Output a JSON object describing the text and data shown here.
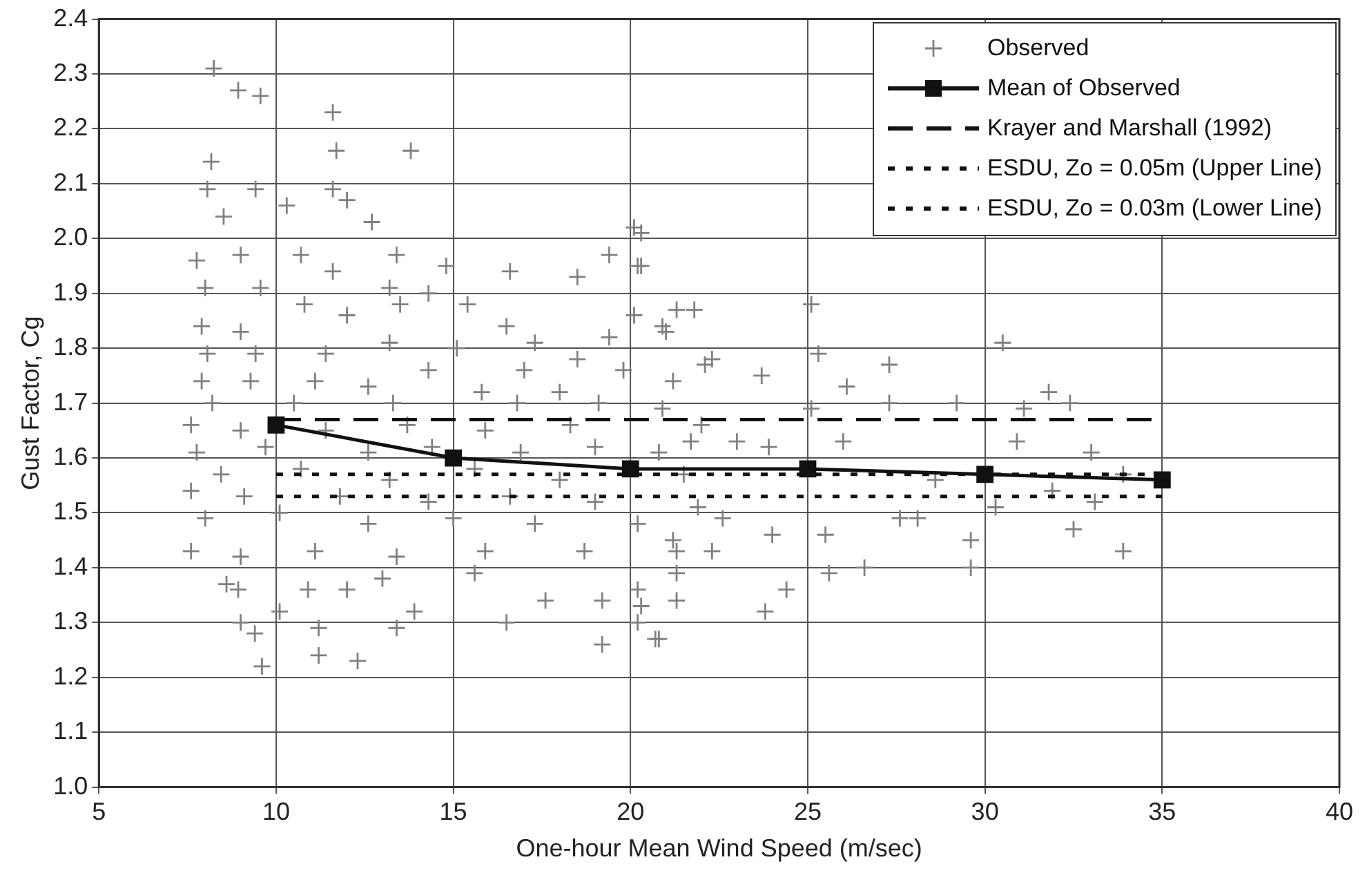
{
  "chart_data": {
    "type": "scatter",
    "xlabel": "One-hour Mean Wind Speed (m/sec)",
    "ylabel": "Gust Factor, Cg",
    "xlim": [
      5,
      40
    ],
    "xticks": [
      5,
      10,
      15,
      20,
      25,
      30,
      35,
      40
    ],
    "ylim": [
      1.0,
      2.4
    ],
    "yticks": [
      {
        "value": 1.0,
        "label": "1.0"
      },
      1.1,
      1.2,
      1.3,
      1.4,
      1.5,
      1.6,
      1.7,
      1.8,
      1.9,
      {
        "value": 2.0,
        "label": "2.0"
      },
      2.1,
      2.2,
      2.3,
      2.4
    ],
    "grid": true,
    "legend": "top right",
    "series": [
      {
        "name": "Observed",
        "type": "scatter",
        "color": "#808080",
        "marker": "cross",
        "x": [
          8.24,
          8.93,
          9.56,
          11.6,
          8.17,
          11.7,
          13.8,
          8.06,
          9.42,
          11.6,
          12.0,
          10.3,
          8.52,
          12.7,
          7.76,
          9.0,
          10.7,
          13.4,
          14.8,
          11.6,
          16.6,
          18.5,
          8.0,
          9.56,
          13.2,
          14.3,
          20.1,
          20.2,
          19.4,
          10.8,
          13.5,
          15.4,
          7.9,
          9.0,
          12.0,
          16.5,
          20.1,
          20.9,
          21.3,
          8.06,
          9.42,
          11.4,
          13.2,
          15.1,
          17.3,
          19.4,
          14.3,
          17.0,
          18.5,
          19.8,
          22.1,
          7.9,
          9.28,
          11.1,
          12.6,
          15.8,
          18.0,
          21.2,
          8.2,
          10.5,
          13.3,
          16.8,
          19.1,
          20.9,
          7.6,
          9.0,
          11.4,
          13.7,
          15.9,
          18.3,
          21.7,
          7.76,
          9.7,
          12.6,
          14.4,
          16.9,
          19.0,
          20.8,
          8.45,
          10.7,
          13.2,
          15.6,
          18.0,
          21.5,
          7.6,
          9.1,
          11.8,
          14.3,
          16.6,
          19.0,
          21.9,
          8.0,
          10.1,
          12.6,
          15.0,
          17.3,
          20.2,
          7.6,
          9.0,
          11.1,
          13.4,
          15.9,
          18.7,
          21.3,
          8.6,
          10.9,
          13.0,
          15.6,
          17.6,
          19.2,
          20.2,
          21.3,
          8.93,
          10.1,
          12.0,
          13.9,
          16.5,
          9.0,
          11.2,
          13.4,
          19.2,
          20.8,
          9.4,
          9.6,
          11.2,
          12.3,
          20.2,
          20.3,
          20.3,
          21.8,
          21.0,
          22.3,
          23.7,
          25.3,
          25.1,
          26.1,
          27.3,
          29.2,
          30.5,
          31.8,
          32.4,
          31.1,
          30.9,
          33.0,
          33.9,
          31.9,
          33.1,
          33.9,
          32.5,
          30.3,
          29.6,
          29.6,
          28.1,
          27.6,
          26.6,
          25.6,
          24.4,
          23.8,
          24.0,
          25.5,
          26.0,
          25.1,
          23.9,
          23.0,
          22.0,
          20.7,
          20.3,
          21.3,
          22.3,
          22.6,
          21.2,
          27.3,
          28.6
        ],
        "values": [
          2.31,
          2.27,
          2.26,
          2.23,
          2.14,
          2.16,
          2.16,
          2.09,
          2.09,
          2.09,
          2.07,
          2.06,
          2.04,
          2.03,
          1.96,
          1.97,
          1.97,
          1.97,
          1.95,
          1.94,
          1.94,
          1.93,
          1.91,
          1.91,
          1.91,
          1.9,
          2.02,
          1.95,
          1.97,
          1.88,
          1.88,
          1.88,
          1.84,
          1.83,
          1.86,
          1.84,
          1.86,
          1.84,
          1.87,
          1.79,
          1.79,
          1.79,
          1.81,
          1.8,
          1.81,
          1.82,
          1.76,
          1.76,
          1.78,
          1.76,
          1.77,
          1.74,
          1.74,
          1.74,
          1.73,
          1.72,
          1.72,
          1.74,
          1.7,
          1.7,
          1.7,
          1.7,
          1.7,
          1.69,
          1.66,
          1.65,
          1.65,
          1.66,
          1.65,
          1.66,
          1.63,
          1.61,
          1.62,
          1.61,
          1.62,
          1.61,
          1.62,
          1.61,
          1.57,
          1.58,
          1.56,
          1.58,
          1.56,
          1.57,
          1.54,
          1.53,
          1.53,
          1.52,
          1.53,
          1.52,
          1.51,
          1.49,
          1.5,
          1.48,
          1.49,
          1.48,
          1.48,
          1.43,
          1.42,
          1.43,
          1.42,
          1.43,
          1.43,
          1.43,
          1.37,
          1.36,
          1.38,
          1.39,
          1.34,
          1.34,
          1.36,
          1.34,
          1.36,
          1.32,
          1.36,
          1.32,
          1.3,
          1.3,
          1.29,
          1.29,
          1.26,
          1.27,
          1.28,
          1.22,
          1.24,
          1.23,
          1.3,
          2.01,
          1.95,
          1.87,
          1.83,
          1.78,
          1.75,
          1.79,
          1.88,
          1.73,
          1.77,
          1.7,
          1.81,
          1.72,
          1.7,
          1.69,
          1.63,
          1.61,
          1.57,
          1.54,
          1.52,
          1.43,
          1.47,
          1.51,
          1.45,
          1.4,
          1.49,
          1.49,
          1.4,
          1.39,
          1.36,
          1.32,
          1.46,
          1.46,
          1.63,
          1.69,
          1.62,
          1.63,
          1.66,
          1.27,
          1.33,
          1.39,
          1.43,
          1.49,
          1.45,
          1.7,
          1.56
        ]
      },
      {
        "name": "Mean of Observed",
        "type": "line",
        "color": "#111111",
        "marker": "square",
        "line_style": "solid",
        "x": [
          10,
          15,
          20,
          25,
          30,
          35
        ],
        "values": [
          1.66,
          1.6,
          1.58,
          1.58,
          1.57,
          1.56
        ]
      },
      {
        "name": "Krayer and Marshall (1992)",
        "type": "line",
        "color": "#111111",
        "marker": "none",
        "line_style": "dashed",
        "x": [
          10,
          35
        ],
        "values": [
          1.67,
          1.67
        ]
      },
      {
        "name": "ESDU, Zo = 0.05m (Upper Line)",
        "type": "line",
        "color": "#111111",
        "marker": "none",
        "line_style": "dotted",
        "x": [
          10,
          35
        ],
        "values": [
          1.57,
          1.57
        ]
      },
      {
        "name": "ESDU, Zo = 0.03m (Lower Line)",
        "type": "line",
        "color": "#111111",
        "marker": "none",
        "line_style": "dotted",
        "x": [
          10,
          35
        ],
        "values": [
          1.53,
          1.53
        ]
      }
    ]
  }
}
